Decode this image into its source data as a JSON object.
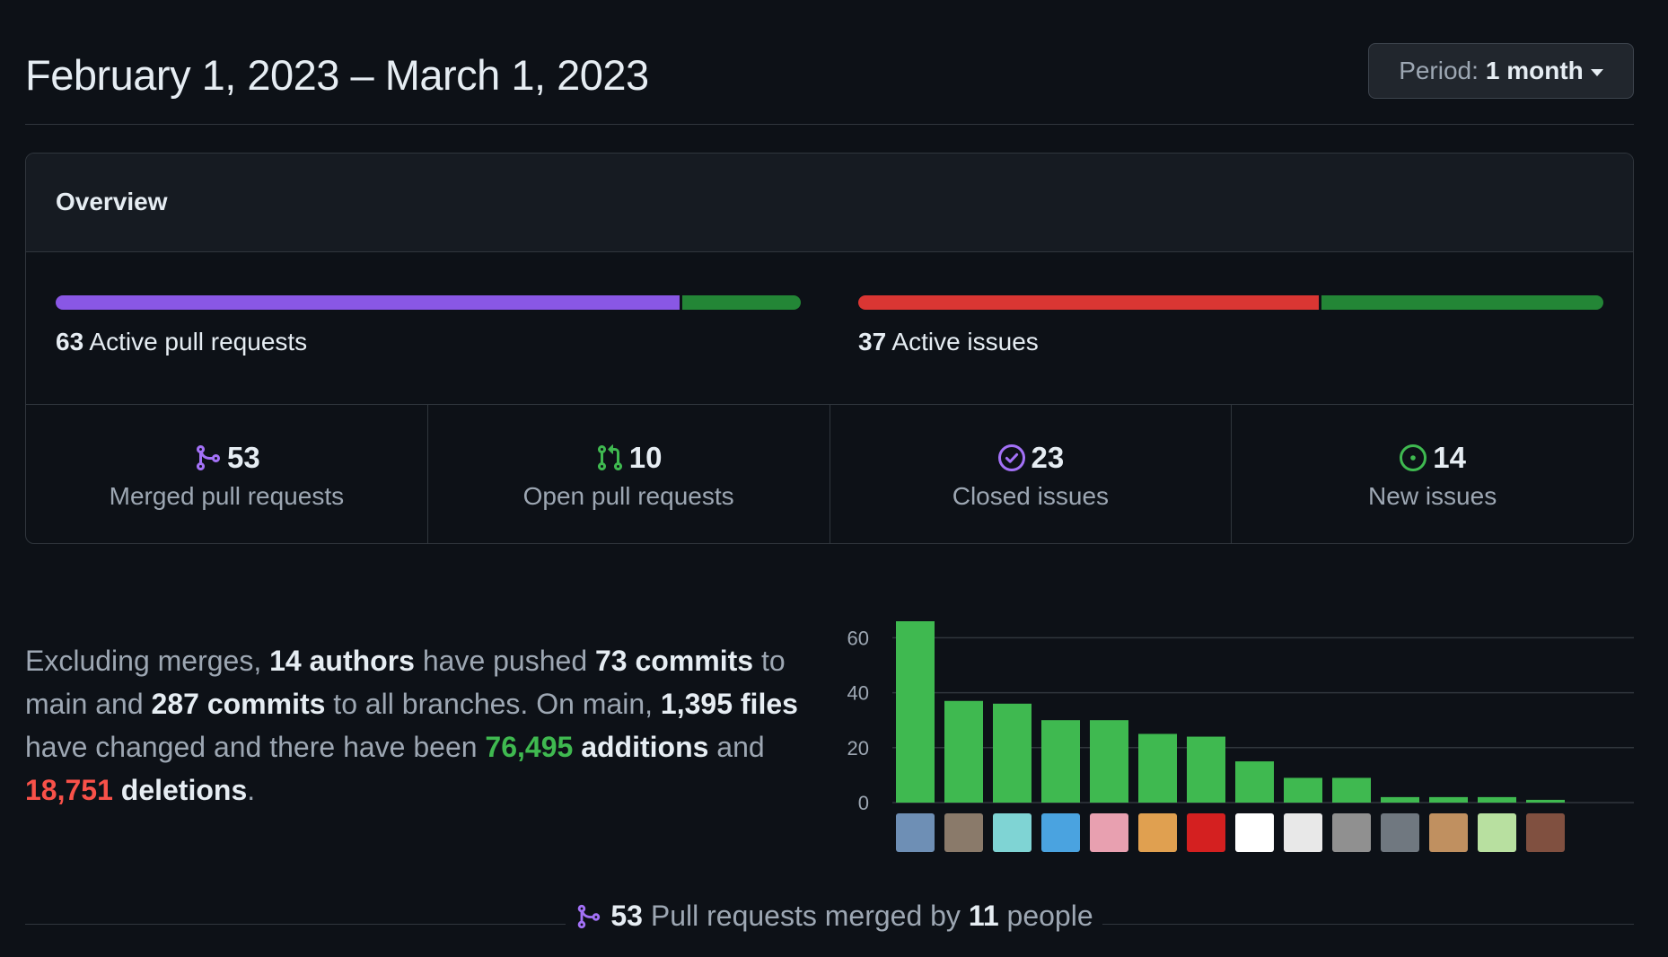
{
  "header": {
    "date_range": "February 1, 2023 – March 1, 2023",
    "period_label": "Period:",
    "period_value": "1 month"
  },
  "overview": {
    "title": "Overview",
    "pull_requests": {
      "count": "63",
      "label": "Active pull requests",
      "merged_fraction": 0.84,
      "colors": {
        "merged": "#8957e5",
        "open": "#238636"
      }
    },
    "issues": {
      "count": "37",
      "label": "Active issues",
      "closed_fraction": 0.62,
      "colors": {
        "closed": "#da3633",
        "new": "#238636"
      }
    },
    "stats": [
      {
        "icon": "merged-pr-icon",
        "color": "#a371f7",
        "value": "53",
        "label": "Merged pull requests"
      },
      {
        "icon": "open-pr-icon",
        "color": "#3fb950",
        "value": "10",
        "label": "Open pull requests"
      },
      {
        "icon": "closed-issue-icon",
        "color": "#a371f7",
        "value": "23",
        "label": "Closed issues"
      },
      {
        "icon": "new-issue-icon",
        "color": "#3fb950",
        "value": "14",
        "label": "New issues"
      }
    ]
  },
  "summary": {
    "t1": "Excluding merges, ",
    "authors": "14 authors",
    "t2": " have pushed ",
    "commits_main": "73 commits",
    "t3": " to main and ",
    "commits_all": "287 commits",
    "t4": " to all branches. On main, ",
    "files": "1,395 files",
    "t5": " have changed and there have been ",
    "additions_num": "76,495",
    "additions_word": " additions",
    "t6": " and ",
    "deletions_num": "18,751",
    "deletions_word": " deletions",
    "t7": "."
  },
  "chart_data": {
    "type": "bar",
    "categories": [
      "author-1",
      "author-2",
      "author-3",
      "author-4",
      "author-5",
      "author-6",
      "author-7",
      "author-8",
      "author-9",
      "author-10",
      "author-11",
      "author-12",
      "author-13",
      "author-14"
    ],
    "values": [
      66,
      37,
      36,
      30,
      30,
      25,
      24,
      15,
      9,
      9,
      2,
      2,
      2,
      1
    ],
    "yticks": [
      "0",
      "20",
      "40",
      "60"
    ],
    "ylim": [
      0,
      66
    ],
    "grid": true,
    "bar_color": "#3fb950"
  },
  "footer": {
    "merged_count": "53",
    "text1": " Pull requests merged by ",
    "people_count": "11",
    "text2": " people"
  }
}
